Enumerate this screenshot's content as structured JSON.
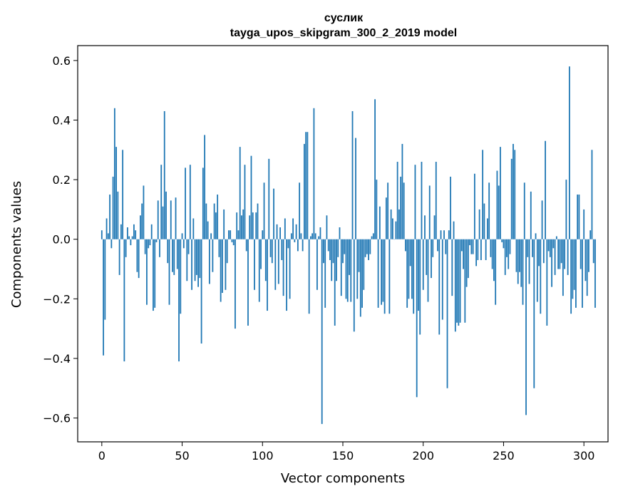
{
  "chart_data": {
    "type": "bar",
    "title": "суслик",
    "subtitle": "tayga_upos_skipgram_300_2_2019 model",
    "xlabel": "Vector components",
    "ylabel": "Components values",
    "xlim": [
      -15,
      315
    ],
    "ylim": [
      -0.68,
      0.65
    ],
    "x_ticks": [
      0,
      50,
      100,
      150,
      200,
      250,
      300
    ],
    "x_tick_labels": [
      "0",
      "50",
      "100",
      "150",
      "200",
      "250",
      "300"
    ],
    "y_ticks": [
      -0.6,
      -0.4,
      -0.2,
      0.0,
      0.2,
      0.4,
      0.6
    ],
    "y_tick_labels": [
      "−0.6",
      "−0.4",
      "−0.2",
      "0.0",
      "0.2",
      "0.4",
      "0.6"
    ],
    "bar_color": "#1f77b4",
    "grid": false,
    "values": [
      0.03,
      -0.39,
      -0.27,
      0.07,
      0.02,
      0.15,
      -0.03,
      0.21,
      0.44,
      0.31,
      0.16,
      -0.12,
      0.05,
      0.3,
      -0.41,
      -0.06,
      0.04,
      0.01,
      -0.02,
      0.01,
      0.05,
      0.03,
      -0.11,
      -0.13,
      0.08,
      0.12,
      0.18,
      -0.05,
      -0.22,
      -0.03,
      -0.02,
      0.05,
      -0.24,
      -0.23,
      -0.01,
      0.13,
      -0.06,
      0.25,
      0.11,
      0.43,
      0.16,
      -0.08,
      -0.22,
      0.13,
      -0.11,
      -0.12,
      0.14,
      -0.1,
      -0.41,
      -0.25,
      0.02,
      -0.03,
      0.24,
      -0.14,
      -0.05,
      0.25,
      -0.17,
      0.07,
      -0.14,
      -0.12,
      -0.16,
      -0.13,
      -0.35,
      0.24,
      0.35,
      0.12,
      0.06,
      -0.15,
      0.02,
      -0.11,
      0.12,
      0.09,
      0.15,
      -0.06,
      -0.21,
      -0.18,
      0.1,
      -0.17,
      -0.08,
      0.03,
      0.03,
      -0.01,
      -0.02,
      -0.3,
      0.09,
      0.03,
      0.31,
      0.08,
      0.1,
      0.25,
      -0.04,
      -0.29,
      0.08,
      0.28,
      0.09,
      -0.17,
      0.09,
      0.12,
      -0.21,
      -0.1,
      0.03,
      0.19,
      -0.14,
      -0.24,
      0.27,
      -0.06,
      -0.08,
      0.17,
      -0.17,
      0.05,
      -0.15,
      0.04,
      -0.07,
      -0.19,
      0.07,
      -0.24,
      -0.03,
      -0.2,
      0.02,
      0.07,
      -0.01,
      0.05,
      -0.04,
      0.19,
      0.02,
      -0.04,
      0.32,
      0.36,
      0.36,
      -0.25,
      0.01,
      0.02,
      0.44,
      0.02,
      -0.17,
      0.01,
      0.04,
      -0.62,
      -0.08,
      -0.23,
      0.08,
      -0.04,
      -0.07,
      -0.14,
      -0.08,
      -0.29,
      -0.14,
      -0.06,
      0.04,
      -0.19,
      -0.08,
      -0.05,
      -0.2,
      -0.21,
      -0.12,
      -0.21,
      0.43,
      -0.31,
      0.34,
      -0.2,
      -0.11,
      -0.26,
      -0.23,
      -0.17,
      -0.06,
      -0.05,
      -0.07,
      -0.05,
      0.01,
      0.02,
      0.47,
      0.2,
      -0.23,
      0.11,
      -0.22,
      -0.21,
      -0.25,
      0.14,
      0.19,
      -0.25,
      0.1,
      0.07,
      0.0,
      0.06,
      0.26,
      0.1,
      0.21,
      0.32,
      0.19,
      -0.04,
      -0.23,
      -0.2,
      -0.09,
      -0.2,
      -0.25,
      0.25,
      -0.53,
      -0.24,
      -0.32,
      0.26,
      -0.17,
      0.08,
      -0.12,
      -0.21,
      0.18,
      -0.13,
      -0.06,
      0.08,
      0.26,
      -0.04,
      -0.32,
      0.03,
      -0.27,
      0.03,
      -0.05,
      -0.5,
      0.03,
      0.21,
      -0.19,
      0.06,
      -0.31,
      -0.28,
      -0.29,
      -0.28,
      -0.04,
      -0.1,
      -0.28,
      -0.16,
      -0.13,
      -0.02,
      -0.05,
      -0.05,
      0.22,
      -0.09,
      -0.07,
      0.1,
      -0.07,
      0.3,
      0.12,
      -0.07,
      0.07,
      0.19,
      -0.06,
      -0.1,
      -0.14,
      -0.22,
      0.23,
      0.18,
      0.31,
      -0.01,
      -0.03,
      -0.12,
      -0.06,
      -0.1,
      -0.05,
      0.27,
      0.32,
      0.3,
      -0.11,
      -0.15,
      -0.11,
      -0.16,
      -0.22,
      0.19,
      -0.59,
      -0.06,
      -0.15,
      0.16,
      -0.06,
      -0.5,
      0.02,
      -0.21,
      -0.09,
      -0.25,
      0.13,
      -0.08,
      0.33,
      -0.29,
      -0.04,
      -0.06,
      -0.16,
      -0.03,
      -0.12,
      0.01,
      -0.1,
      -0.1,
      -0.08,
      -0.19,
      -0.1,
      0.2,
      -0.12,
      0.58,
      -0.25,
      -0.2,
      -0.17,
      -0.23,
      0.15,
      0.15,
      -0.1,
      -0.23,
      0.1,
      -0.14,
      -0.19,
      -0.11,
      0.03,
      0.3,
      -0.08,
      -0.23
    ]
  }
}
